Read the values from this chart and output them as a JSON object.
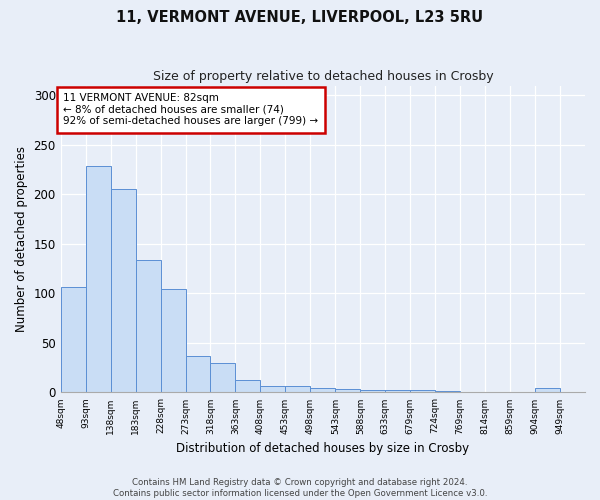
{
  "title": "11, VERMONT AVENUE, LIVERPOOL, L23 5RU",
  "subtitle": "Size of property relative to detached houses in Crosby",
  "xlabel": "Distribution of detached houses by size in Crosby",
  "ylabel": "Number of detached properties",
  "bin_labels": [
    "48sqm",
    "93sqm",
    "138sqm",
    "183sqm",
    "228sqm",
    "273sqm",
    "318sqm",
    "363sqm",
    "408sqm",
    "453sqm",
    "498sqm",
    "543sqm",
    "588sqm",
    "633sqm",
    "679sqm",
    "724sqm",
    "769sqm",
    "814sqm",
    "859sqm",
    "904sqm",
    "949sqm"
  ],
  "bin_heights": [
    106,
    229,
    205,
    134,
    104,
    37,
    30,
    13,
    7,
    7,
    4,
    3,
    2,
    2,
    2,
    1,
    0,
    0,
    0,
    4,
    0
  ],
  "bar_color": "#c9ddf5",
  "bar_edge_color": "#5b8fd4",
  "annotation_text": "11 VERMONT AVENUE: 82sqm\n← 8% of detached houses are smaller (74)\n92% of semi-detached houses are larger (799) →",
  "annotation_box_color": "white",
  "annotation_box_edge": "#cc0000",
  "footer_line1": "Contains HM Land Registry data © Crown copyright and database right 2024.",
  "footer_line2": "Contains public sector information licensed under the Open Government Licence v3.0.",
  "background_color": "#e8eef8",
  "ylim": [
    0,
    310
  ],
  "yticks": [
    0,
    50,
    100,
    150,
    200,
    250,
    300
  ]
}
